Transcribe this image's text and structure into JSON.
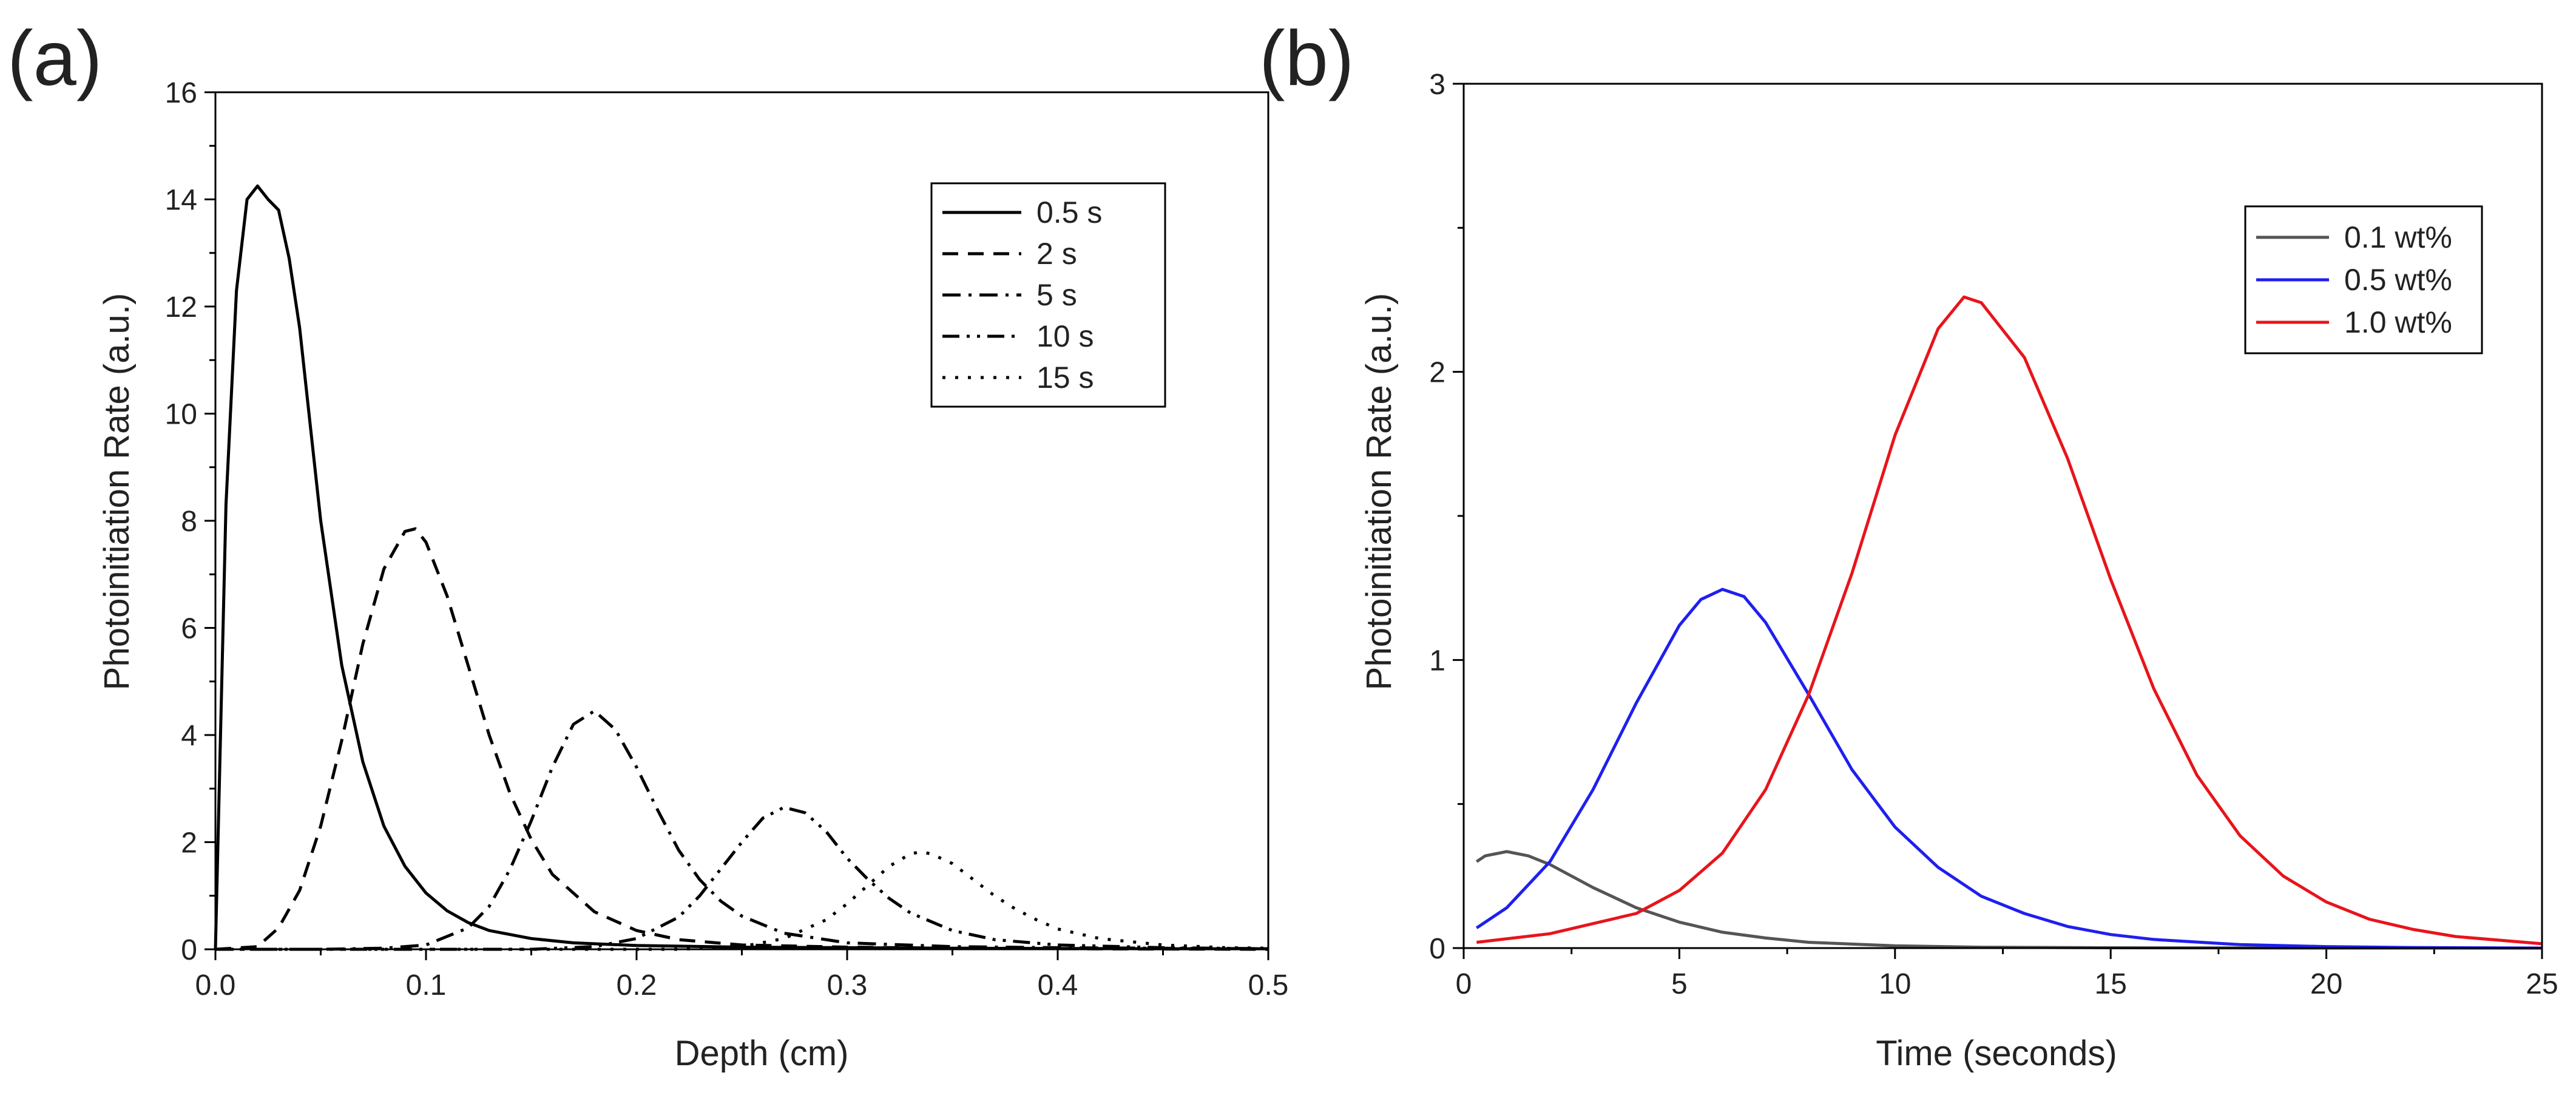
{
  "panel_labels": [
    "(a)",
    "(b)"
  ],
  "chart_data": [
    {
      "type": "line",
      "panel": "(a)",
      "title": "",
      "xlabel": "Depth (cm)",
      "ylabel": "Photoinitiation Rate (a.u.)",
      "xlim": [
        0,
        0.5
      ],
      "ylim": [
        0,
        16
      ],
      "xticks": [
        0,
        0.1,
        0.2,
        0.3,
        0.4,
        0.5
      ],
      "xtick_labels": [
        "0.0",
        "0.1",
        "0.2",
        "0.3",
        "0.4",
        "0.5"
      ],
      "yticks": [
        0,
        2,
        4,
        6,
        8,
        10,
        12,
        14,
        16
      ],
      "ytick_labels": [
        "0",
        "2",
        "4",
        "6",
        "8",
        "10",
        "12",
        "14",
        "16"
      ],
      "grid": false,
      "legend_position": "top-right",
      "series": [
        {
          "name": "0.5 s",
          "style": "solid",
          "color": "#000000",
          "x": [
            0,
            0.005,
            0.01,
            0.015,
            0.02,
            0.025,
            0.03,
            0.035,
            0.04,
            0.045,
            0.05,
            0.06,
            0.07,
            0.08,
            0.09,
            0.1,
            0.11,
            0.12,
            0.13,
            0.15,
            0.17,
            0.2,
            0.25,
            0.3,
            0.35,
            0.4,
            0.45,
            0.5
          ],
          "y": [
            0,
            8.3,
            12.3,
            14.0,
            14.25,
            14.0,
            13.8,
            12.9,
            11.6,
            9.8,
            8.0,
            5.3,
            3.5,
            2.3,
            1.55,
            1.05,
            0.72,
            0.5,
            0.35,
            0.2,
            0.12,
            0.07,
            0.04,
            0.03,
            0.02,
            0.015,
            0.01,
            0.01
          ]
        },
        {
          "name": "2 s",
          "style": "dashed",
          "color": "#000000",
          "x": [
            0,
            0.02,
            0.03,
            0.04,
            0.05,
            0.06,
            0.07,
            0.08,
            0.09,
            0.095,
            0.1,
            0.11,
            0.12,
            0.13,
            0.14,
            0.15,
            0.16,
            0.18,
            0.2,
            0.22,
            0.25,
            0.3,
            0.35,
            0.4,
            0.5
          ],
          "y": [
            0,
            0.05,
            0.4,
            1.1,
            2.3,
            3.9,
            5.7,
            7.1,
            7.8,
            7.85,
            7.6,
            6.6,
            5.3,
            4.0,
            2.9,
            2.05,
            1.4,
            0.7,
            0.35,
            0.18,
            0.08,
            0.04,
            0.02,
            0.01,
            0.0
          ]
        },
        {
          "name": "5 s",
          "style": "dash-dot",
          "color": "#000000",
          "x": [
            0,
            0.05,
            0.08,
            0.1,
            0.12,
            0.13,
            0.14,
            0.15,
            0.16,
            0.17,
            0.18,
            0.19,
            0.2,
            0.21,
            0.22,
            0.23,
            0.24,
            0.25,
            0.27,
            0.3,
            0.35,
            0.4,
            0.5
          ],
          "y": [
            0,
            0.0,
            0.02,
            0.08,
            0.4,
            0.8,
            1.5,
            2.4,
            3.4,
            4.2,
            4.45,
            4.1,
            3.4,
            2.6,
            1.85,
            1.3,
            0.9,
            0.62,
            0.3,
            0.12,
            0.05,
            0.03,
            0.01
          ]
        },
        {
          "name": "10 s",
          "style": "dash-dot-dot",
          "color": "#000000",
          "x": [
            0,
            0.15,
            0.18,
            0.2,
            0.22,
            0.23,
            0.24,
            0.25,
            0.26,
            0.27,
            0.28,
            0.29,
            0.3,
            0.31,
            0.32,
            0.33,
            0.35,
            0.37,
            0.4,
            0.45,
            0.5
          ],
          "y": [
            0,
            0.0,
            0.05,
            0.2,
            0.6,
            1.0,
            1.5,
            2.0,
            2.45,
            2.65,
            2.55,
            2.2,
            1.7,
            1.3,
            0.95,
            0.68,
            0.35,
            0.18,
            0.08,
            0.03,
            0.01
          ]
        },
        {
          "name": "15 s",
          "style": "dotted",
          "color": "#000000",
          "x": [
            0,
            0.22,
            0.25,
            0.27,
            0.29,
            0.3,
            0.31,
            0.32,
            0.33,
            0.335,
            0.34,
            0.35,
            0.36,
            0.37,
            0.38,
            0.39,
            0.4,
            0.42,
            0.45,
            0.48,
            0.5
          ],
          "y": [
            0,
            0.0,
            0.05,
            0.2,
            0.55,
            0.85,
            1.2,
            1.55,
            1.78,
            1.82,
            1.78,
            1.6,
            1.3,
            1.0,
            0.75,
            0.55,
            0.38,
            0.2,
            0.08,
            0.03,
            0.02
          ]
        }
      ]
    },
    {
      "type": "line",
      "panel": "(b)",
      "title": "",
      "xlabel": "Time (seconds)",
      "ylabel": "Photoinitiation Rate (a.u.)",
      "xlim": [
        0,
        25
      ],
      "ylim": [
        0,
        3
      ],
      "xticks": [
        0,
        5,
        10,
        15,
        20,
        25
      ],
      "xtick_labels": [
        "0",
        "5",
        "10",
        "15",
        "20",
        "25"
      ],
      "yticks": [
        0,
        1,
        2,
        3
      ],
      "ytick_labels": [
        "0",
        "1",
        "2",
        "3"
      ],
      "grid": false,
      "legend_position": "top-right",
      "series": [
        {
          "name": "0.1 wt%",
          "style": "solid",
          "color": "#555555",
          "x": [
            0.3,
            0.5,
            1.0,
            1.5,
            2,
            3,
            4,
            5,
            6,
            7,
            8,
            10,
            12,
            15,
            20,
            25
          ],
          "y": [
            0.3,
            0.32,
            0.335,
            0.32,
            0.29,
            0.21,
            0.14,
            0.09,
            0.055,
            0.035,
            0.02,
            0.008,
            0.003,
            0.001,
            0.0,
            0.0
          ]
        },
        {
          "name": "0.5 wt%",
          "style": "solid",
          "color": "#1f1fef",
          "x": [
            0.3,
            1,
            2,
            3,
            4,
            5,
            5.5,
            6,
            6.5,
            7,
            8,
            9,
            10,
            11,
            12,
            13,
            14,
            15,
            16,
            18,
            20,
            22,
            25
          ],
          "y": [
            0.07,
            0.14,
            0.3,
            0.55,
            0.85,
            1.12,
            1.21,
            1.245,
            1.22,
            1.13,
            0.88,
            0.62,
            0.42,
            0.28,
            0.18,
            0.12,
            0.075,
            0.047,
            0.03,
            0.012,
            0.005,
            0.002,
            0.0
          ]
        },
        {
          "name": "1.0 wt%",
          "style": "solid",
          "color": "#e8141b",
          "x": [
            0.3,
            2,
            4,
            5,
            6,
            7,
            8,
            9,
            10,
            11,
            11.6,
            12,
            13,
            14,
            15,
            16,
            17,
            18,
            19,
            20,
            21,
            22,
            23,
            25
          ],
          "y": [
            0.02,
            0.05,
            0.12,
            0.2,
            0.33,
            0.55,
            0.88,
            1.3,
            1.78,
            2.15,
            2.26,
            2.24,
            2.05,
            1.7,
            1.28,
            0.9,
            0.6,
            0.39,
            0.25,
            0.16,
            0.1,
            0.065,
            0.04,
            0.015
          ]
        }
      ]
    }
  ]
}
